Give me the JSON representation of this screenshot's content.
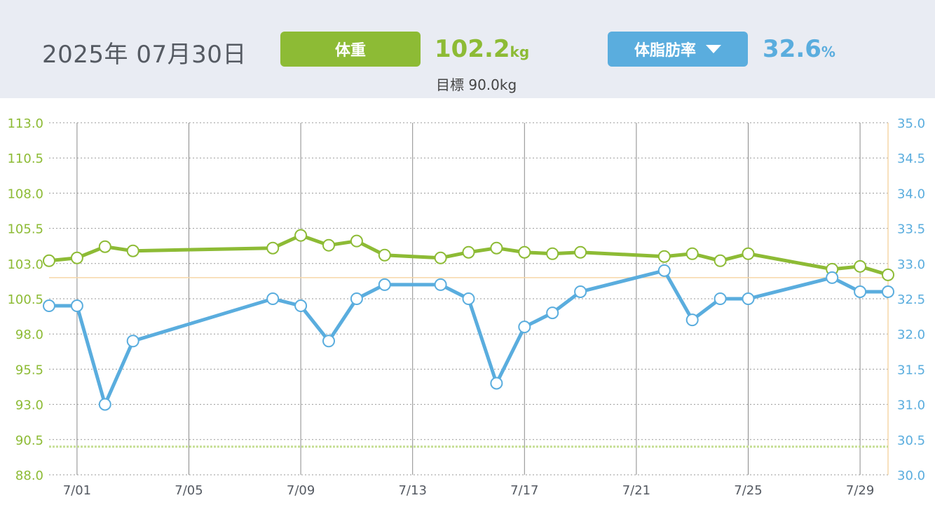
{
  "header": {
    "date_label": "2025年 07月30日",
    "weight_button_label": "体重",
    "weight_value": "102.2",
    "weight_unit": "kg",
    "goal_text": "目標 90.0kg",
    "fat_button_label": "体脂肪率",
    "fat_value": "32.6",
    "fat_unit": "%"
  },
  "colors": {
    "weight": "#8dbb35",
    "fat": "#5aadde",
    "header_bg": "#e9ecf3",
    "goal_line": "#c5de94",
    "reference_line": "#f6d7a8",
    "grid": "#888888"
  },
  "chart_data": {
    "type": "line",
    "x_tick_labels": [
      "7/01",
      "7/05",
      "7/09",
      "7/13",
      "7/17",
      "7/21",
      "7/25",
      "7/29"
    ],
    "x_tick_days": [
      1,
      5,
      9,
      13,
      17,
      21,
      25,
      29
    ],
    "xlim": [
      "6/30",
      "7/30"
    ],
    "y_left": {
      "lim": [
        88.0,
        113.0
      ],
      "ticks": [
        "113.0",
        "110.5",
        "108.0",
        "105.5",
        "103.0",
        "100.5",
        "98.0",
        "95.5",
        "93.0",
        "90.5",
        "88.0"
      ]
    },
    "y_right": {
      "lim": [
        30.0,
        35.0
      ],
      "ticks": [
        "35.0",
        "34.5",
        "34.0",
        "33.5",
        "33.0",
        "32.5",
        "32.0",
        "31.5",
        "31.0",
        "30.5",
        "30.0"
      ]
    },
    "grid": "dotted horizontal, solid vertical",
    "goal_weight": 90.0,
    "reference_fat": 32.8,
    "series": [
      {
        "axis": "left",
        "x": [
          "6/30",
          "7/01",
          "7/02",
          "7/03",
          "7/08",
          "7/09",
          "7/10",
          "7/11",
          "7/12",
          "7/14",
          "7/15",
          "7/16",
          "7/17",
          "7/18",
          "7/19",
          "7/22",
          "7/23",
          "7/24",
          "7/25",
          "7/28",
          "7/29",
          "7/30"
        ],
        "values": [
          103.2,
          103.4,
          104.2,
          103.9,
          104.1,
          105.0,
          104.3,
          104.6,
          103.6,
          103.4,
          103.8,
          104.1,
          103.8,
          103.7,
          103.8,
          103.5,
          103.7,
          103.2,
          103.7,
          102.6,
          102.8,
          102.2
        ]
      },
      {
        "axis": "right",
        "x": [
          "6/30",
          "7/01",
          "7/02",
          "7/03",
          "7/08",
          "7/09",
          "7/10",
          "7/11",
          "7/12",
          "7/14",
          "7/15",
          "7/16",
          "7/17",
          "7/18",
          "7/19",
          "7/22",
          "7/23",
          "7/24",
          "7/25",
          "7/28",
          "7/29",
          "7/30"
        ],
        "values": [
          32.4,
          32.4,
          31.0,
          31.9,
          32.5,
          32.4,
          31.9,
          32.5,
          32.7,
          32.7,
          32.5,
          31.3,
          32.1,
          32.3,
          32.6,
          32.9,
          32.2,
          32.5,
          32.5,
          32.8,
          32.6,
          32.6
        ]
      }
    ]
  }
}
